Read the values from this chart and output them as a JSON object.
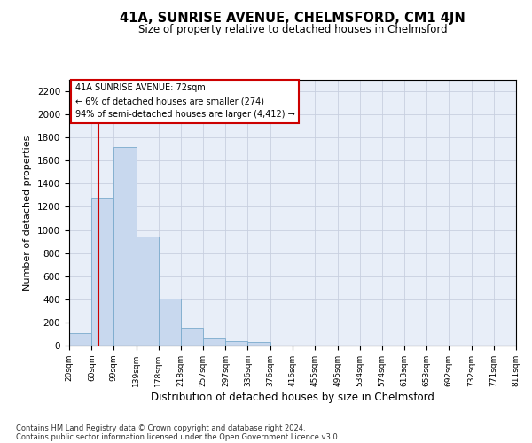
{
  "title": "41A, SUNRISE AVENUE, CHELMSFORD, CM1 4JN",
  "subtitle": "Size of property relative to detached houses in Chelmsford",
  "xlabel": "Distribution of detached houses by size in Chelmsford",
  "ylabel": "Number of detached properties",
  "footnote1": "Contains HM Land Registry data © Crown copyright and database right 2024.",
  "footnote2": "Contains public sector information licensed under the Open Government Licence v3.0.",
  "bar_color": "#c8d8ee",
  "bar_edge_color": "#7aaacc",
  "grid_color": "#c8cfe0",
  "background_color": "#e8eef8",
  "property_line_color": "#cc0000",
  "property_line_x": 72,
  "bin_edges": [
    20,
    60,
    99,
    139,
    178,
    218,
    257,
    297,
    336,
    376,
    416,
    455,
    495,
    534,
    574,
    613,
    653,
    692,
    732,
    771,
    811
  ],
  "bin_labels": [
    "20sqm",
    "60sqm",
    "99sqm",
    "139sqm",
    "178sqm",
    "218sqm",
    "257sqm",
    "297sqm",
    "336sqm",
    "376sqm",
    "416sqm",
    "455sqm",
    "495sqm",
    "534sqm",
    "574sqm",
    "613sqm",
    "653sqm",
    "692sqm",
    "732sqm",
    "771sqm",
    "811sqm"
  ],
  "counts": [
    110,
    1270,
    1720,
    940,
    410,
    155,
    65,
    40,
    28,
    0,
    0,
    0,
    0,
    0,
    0,
    0,
    0,
    0,
    0,
    0
  ],
  "ylim": [
    0,
    2300
  ],
  "yticks": [
    0,
    200,
    400,
    600,
    800,
    1000,
    1200,
    1400,
    1600,
    1800,
    2000,
    2200
  ],
  "annotation_line1": "41A SUNRISE AVENUE: 72sqm",
  "annotation_line2": "← 6% of detached houses are smaller (274)",
  "annotation_line3": "94% of semi-detached houses are larger (4,412) →",
  "annotation_box_color": "#ffffff",
  "annotation_box_edge": "#cc0000"
}
